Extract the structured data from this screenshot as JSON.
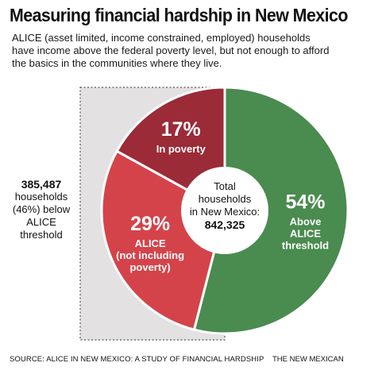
{
  "header": {
    "title": "Measuring financial hardship in New Mexico",
    "subtitle_lines": [
      "ALICE (asset limited, income constrained, employed) households",
      "have income above the federal poverty level, but not enough to afford",
      "the basics in the communities where they live."
    ]
  },
  "side_note": {
    "count": "385,487",
    "lines": [
      "households",
      "(46%) below",
      "ALICE",
      "threshold"
    ]
  },
  "chart_data": {
    "type": "pie",
    "variant": "donut",
    "title": "Measuring financial hardship in New Mexico",
    "center_label": {
      "lines": [
        "Total",
        "households",
        "in New Mexico:"
      ],
      "value": "842,325"
    },
    "slices": [
      {
        "percent_label": "54%",
        "label_lines": [
          "Above",
          "ALICE",
          "threshold"
        ],
        "value": 54,
        "color": "#4a8b4f"
      },
      {
        "percent_label": "29%",
        "label_lines": [
          "ALICE",
          "(not including",
          "poverty)"
        ],
        "value": 29,
        "color": "#d4434a"
      },
      {
        "percent_label": "17%",
        "label_lines": [
          "In poverty"
        ],
        "value": 17,
        "color": "#9b2b37"
      }
    ]
  },
  "footer": {
    "source": "SOURCE: ALICE IN NEW MEXICO: A STUDY OF FINANCIAL HARDSHIP",
    "credit": "THE NEW MEXICAN"
  }
}
